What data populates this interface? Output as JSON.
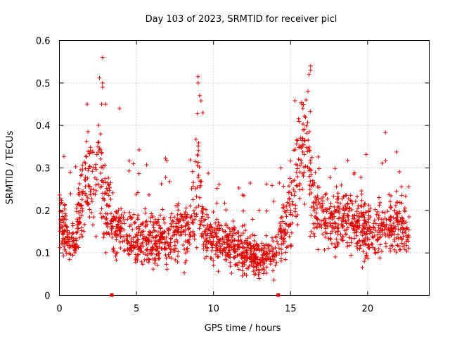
{
  "chart_data": {
    "type": "scatter",
    "title": "Day 103 of 2023, SRMTID for receiver picl",
    "xlabel": "GPS time / hours",
    "ylabel": "SRMTID / TECUs",
    "xlim": [
      0,
      24
    ],
    "ylim": [
      0,
      0.6
    ],
    "x_ticks": [
      "0",
      "5",
      "10",
      "15",
      "20"
    ],
    "y_ticks": [
      "0",
      "0.1",
      "0.2",
      "0.3",
      "0.4",
      "0.5",
      "0.6"
    ],
    "grid": true,
    "marker": "+",
    "series_color": "#e00000",
    "baseline_markers_x": [
      3.4,
      14.2
    ],
    "series": [
      {
        "name": "SRMTID",
        "profile": [
          [
            0.0,
            0.2,
            0.06
          ],
          [
            0.3,
            0.15,
            0.04
          ],
          [
            0.6,
            0.13,
            0.03
          ],
          [
            1.0,
            0.12,
            0.03
          ],
          [
            1.5,
            0.25,
            0.08
          ],
          [
            2.0,
            0.26,
            0.07
          ],
          [
            2.5,
            0.3,
            0.09
          ],
          [
            3.0,
            0.22,
            0.09
          ],
          [
            3.5,
            0.16,
            0.05
          ],
          [
            4.0,
            0.15,
            0.04
          ],
          [
            5.0,
            0.13,
            0.04
          ],
          [
            6.0,
            0.13,
            0.04
          ],
          [
            7.0,
            0.13,
            0.04
          ],
          [
            8.0,
            0.15,
            0.05
          ],
          [
            8.7,
            0.17,
            0.05
          ],
          [
            9.0,
            0.28,
            0.1
          ],
          [
            9.4,
            0.15,
            0.05
          ],
          [
            10.0,
            0.13,
            0.04
          ],
          [
            11.0,
            0.12,
            0.04
          ],
          [
            12.0,
            0.1,
            0.035
          ],
          [
            13.0,
            0.09,
            0.03
          ],
          [
            14.0,
            0.1,
            0.03
          ],
          [
            14.5,
            0.15,
            0.05
          ],
          [
            15.0,
            0.22,
            0.08
          ],
          [
            15.5,
            0.28,
            0.09
          ],
          [
            16.0,
            0.38,
            0.1
          ],
          [
            16.5,
            0.2,
            0.06
          ],
          [
            17.0,
            0.18,
            0.05
          ],
          [
            18.0,
            0.18,
            0.05
          ],
          [
            19.0,
            0.17,
            0.05
          ],
          [
            20.0,
            0.15,
            0.05
          ],
          [
            21.0,
            0.16,
            0.05
          ],
          [
            22.0,
            0.17,
            0.05
          ],
          [
            22.7,
            0.14,
            0.04
          ]
        ],
        "peaks": [
          [
            2.8,
            0.56
          ],
          [
            2.8,
            0.5
          ],
          [
            2.8,
            0.49
          ],
          [
            9.0,
            0.515
          ],
          [
            9.0,
            0.5
          ],
          [
            9.1,
            0.47
          ],
          [
            16.3,
            0.54
          ],
          [
            16.3,
            0.53
          ],
          [
            16.2,
            0.52
          ],
          [
            16.0,
            0.46
          ],
          [
            15.8,
            0.44
          ],
          [
            1.8,
            0.45
          ],
          [
            3.9,
            0.44
          ],
          [
            9.3,
            0.43
          ],
          [
            3.0,
            0.45
          ]
        ]
      }
    ]
  }
}
